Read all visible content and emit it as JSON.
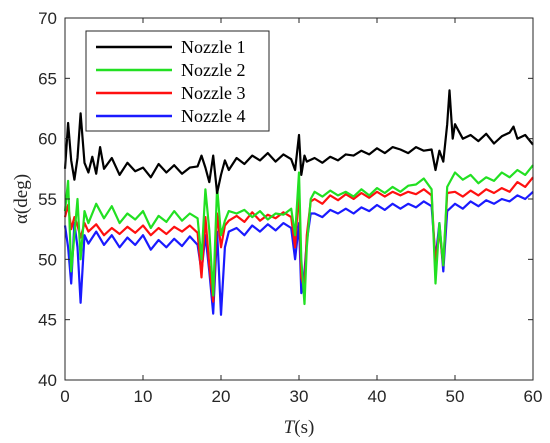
{
  "chart_data": {
    "type": "line",
    "xlabel": {
      "italic": "T",
      "rest": "(s)"
    },
    "ylabel": {
      "symbol": "α",
      "rest": "(deg)"
    },
    "xlim": [
      0,
      60
    ],
    "ylim": [
      40,
      70
    ],
    "xticks": [
      0,
      10,
      20,
      30,
      40,
      50,
      60
    ],
    "yticks": [
      40,
      45,
      50,
      55,
      60,
      65,
      70
    ],
    "grid": false,
    "legend_position": "top-left",
    "series": [
      {
        "name": "Nozzle 1",
        "color": "#000000",
        "points": [
          [
            0,
            57.5
          ],
          [
            0.4,
            61.3
          ],
          [
            0.8,
            58.2
          ],
          [
            1.2,
            56.6
          ],
          [
            1.6,
            58.4
          ],
          [
            2.0,
            62.1
          ],
          [
            2.5,
            58.0
          ],
          [
            3.0,
            57.2
          ],
          [
            3.5,
            58.5
          ],
          [
            4.0,
            57.1
          ],
          [
            4.5,
            59.3
          ],
          [
            5.0,
            57.5
          ],
          [
            6.0,
            58.4
          ],
          [
            7.0,
            57.0
          ],
          [
            8.0,
            58.0
          ],
          [
            9.0,
            57.3
          ],
          [
            10.0,
            57.6
          ],
          [
            11.0,
            56.8
          ],
          [
            12.0,
            57.9
          ],
          [
            13.0,
            57.2
          ],
          [
            14.0,
            57.8
          ],
          [
            15.0,
            57.1
          ],
          [
            16.0,
            57.6
          ],
          [
            17.0,
            57.7
          ],
          [
            17.5,
            58.6
          ],
          [
            18.0,
            57.6
          ],
          [
            18.5,
            56.4
          ],
          [
            19.0,
            58.6
          ],
          [
            19.5,
            55.5
          ],
          [
            20.0,
            57.0
          ],
          [
            20.5,
            58.2
          ],
          [
            21.0,
            57.4
          ],
          [
            22.0,
            58.4
          ],
          [
            23.0,
            57.9
          ],
          [
            24.0,
            58.6
          ],
          [
            25.0,
            58.2
          ],
          [
            26.0,
            58.8
          ],
          [
            27.0,
            58.1
          ],
          [
            28.0,
            58.7
          ],
          [
            29.0,
            58.3
          ],
          [
            29.5,
            57.4
          ],
          [
            30.0,
            60.3
          ],
          [
            30.3,
            57.0
          ],
          [
            30.7,
            58.6
          ],
          [
            31.0,
            58.1
          ],
          [
            32.0,
            58.4
          ],
          [
            33.0,
            58.0
          ],
          [
            34.0,
            58.5
          ],
          [
            35.0,
            58.2
          ],
          [
            36.0,
            58.7
          ],
          [
            37.0,
            58.6
          ],
          [
            38.0,
            59.0
          ],
          [
            39.0,
            58.7
          ],
          [
            40.0,
            59.2
          ],
          [
            41.0,
            58.8
          ],
          [
            42.0,
            59.3
          ],
          [
            43.0,
            59.1
          ],
          [
            44.0,
            58.8
          ],
          [
            45.0,
            59.3
          ],
          [
            46.0,
            59.0
          ],
          [
            47.0,
            59.1
          ],
          [
            47.5,
            57.4
          ],
          [
            48.0,
            59.0
          ],
          [
            48.5,
            58.1
          ],
          [
            49.0,
            61.2
          ],
          [
            49.3,
            64.0
          ],
          [
            49.7,
            60.0
          ],
          [
            50.0,
            61.2
          ],
          [
            51.0,
            60.0
          ],
          [
            52.0,
            60.3
          ],
          [
            53.0,
            59.8
          ],
          [
            54.0,
            60.4
          ],
          [
            55.0,
            59.6
          ],
          [
            56.0,
            60.2
          ],
          [
            57.0,
            60.5
          ],
          [
            57.5,
            61.0
          ],
          [
            58.0,
            60.0
          ],
          [
            59.0,
            60.3
          ],
          [
            60.0,
            59.5
          ]
        ]
      },
      {
        "name": "Nozzle 2",
        "color": "#22e022",
        "points": [
          [
            0,
            54.0
          ],
          [
            0.4,
            56.5
          ],
          [
            0.8,
            49.0
          ],
          [
            1.2,
            52.0
          ],
          [
            1.6,
            55.0
          ],
          [
            2.0,
            50.0
          ],
          [
            2.5,
            54.0
          ],
          [
            3.0,
            53.0
          ],
          [
            4.0,
            54.6
          ],
          [
            5.0,
            53.4
          ],
          [
            6.0,
            54.4
          ],
          [
            7.0,
            53.0
          ],
          [
            8.0,
            53.8
          ],
          [
            9.0,
            53.3
          ],
          [
            10.0,
            54.0
          ],
          [
            11.0,
            52.6
          ],
          [
            12.0,
            53.6
          ],
          [
            13.0,
            53.1
          ],
          [
            14.0,
            54.0
          ],
          [
            15.0,
            53.2
          ],
          [
            16.0,
            53.8
          ],
          [
            17.0,
            53.4
          ],
          [
            17.5,
            50.0
          ],
          [
            18.0,
            55.8
          ],
          [
            18.5,
            52.4
          ],
          [
            19.0,
            47.0
          ],
          [
            19.5,
            56.0
          ],
          [
            20.0,
            52.0
          ],
          [
            20.5,
            53.2
          ],
          [
            21.0,
            54.0
          ],
          [
            22.0,
            53.8
          ],
          [
            23.0,
            54.1
          ],
          [
            24.0,
            53.5
          ],
          [
            25.0,
            54.0
          ],
          [
            26.0,
            53.3
          ],
          [
            27.0,
            53.8
          ],
          [
            28.0,
            53.7
          ],
          [
            29.0,
            54.2
          ],
          [
            29.5,
            52.0
          ],
          [
            30.0,
            57.2
          ],
          [
            30.3,
            50.0
          ],
          [
            30.7,
            46.3
          ],
          [
            31.0,
            51.0
          ],
          [
            31.5,
            55.0
          ],
          [
            32.0,
            55.6
          ],
          [
            33.0,
            55.2
          ],
          [
            34.0,
            55.7
          ],
          [
            35.0,
            55.3
          ],
          [
            36.0,
            55.6
          ],
          [
            37.0,
            55.2
          ],
          [
            38.0,
            55.8
          ],
          [
            39.0,
            55.3
          ],
          [
            40.0,
            55.9
          ],
          [
            41.0,
            55.5
          ],
          [
            42.0,
            56.0
          ],
          [
            43.0,
            55.6
          ],
          [
            44.0,
            56.1
          ],
          [
            45.0,
            56.2
          ],
          [
            46.0,
            56.7
          ],
          [
            47.0,
            55.8
          ],
          [
            47.5,
            48.0
          ],
          [
            48.0,
            53.0
          ],
          [
            48.5,
            49.5
          ],
          [
            49.0,
            56.0
          ],
          [
            50.0,
            57.2
          ],
          [
            51.0,
            56.6
          ],
          [
            52.0,
            57.0
          ],
          [
            53.0,
            56.3
          ],
          [
            54.0,
            56.8
          ],
          [
            55.0,
            56.5
          ],
          [
            56.0,
            57.2
          ],
          [
            57.0,
            56.8
          ],
          [
            58.0,
            57.4
          ],
          [
            59.0,
            57.0
          ],
          [
            60.0,
            57.8
          ]
        ]
      },
      {
        "name": "Nozzle 3",
        "color": "#ff1010",
        "points": [
          [
            0,
            53.5
          ],
          [
            0.4,
            54.5
          ],
          [
            0.8,
            52.5
          ],
          [
            1.2,
            53.5
          ],
          [
            1.6,
            52.8
          ],
          [
            2.0,
            51.8
          ],
          [
            2.5,
            53.0
          ],
          [
            3.0,
            52.3
          ],
          [
            4.0,
            52.9
          ],
          [
            5.0,
            52.0
          ],
          [
            6.0,
            52.6
          ],
          [
            7.0,
            52.1
          ],
          [
            8.0,
            52.7
          ],
          [
            9.0,
            52.2
          ],
          [
            10.0,
            52.8
          ],
          [
            11.0,
            52.0
          ],
          [
            12.0,
            52.6
          ],
          [
            13.0,
            52.1
          ],
          [
            14.0,
            52.7
          ],
          [
            15.0,
            52.3
          ],
          [
            16.0,
            52.8
          ],
          [
            17.0,
            52.2
          ],
          [
            17.5,
            48.5
          ],
          [
            18.0,
            53.5
          ],
          [
            18.5,
            49.5
          ],
          [
            19.0,
            46.5
          ],
          [
            19.5,
            53.8
          ],
          [
            20.0,
            51.0
          ],
          [
            20.5,
            52.8
          ],
          [
            21.0,
            53.2
          ],
          [
            22.0,
            53.6
          ],
          [
            23.0,
            53.1
          ],
          [
            24.0,
            53.9
          ],
          [
            25.0,
            53.2
          ],
          [
            26.0,
            53.7
          ],
          [
            27.0,
            53.4
          ],
          [
            28.0,
            53.9
          ],
          [
            29.0,
            53.5
          ],
          [
            29.5,
            51.0
          ],
          [
            30.0,
            56.0
          ],
          [
            30.3,
            48.5
          ],
          [
            30.7,
            47.5
          ],
          [
            31.0,
            52.0
          ],
          [
            31.5,
            54.8
          ],
          [
            32.0,
            55.0
          ],
          [
            33.0,
            54.6
          ],
          [
            34.0,
            55.3
          ],
          [
            35.0,
            54.9
          ],
          [
            36.0,
            55.4
          ],
          [
            37.0,
            55.0
          ],
          [
            38.0,
            55.5
          ],
          [
            39.0,
            55.1
          ],
          [
            40.0,
            55.6
          ],
          [
            41.0,
            55.2
          ],
          [
            42.0,
            55.6
          ],
          [
            43.0,
            55.3
          ],
          [
            44.0,
            55.6
          ],
          [
            45.0,
            55.4
          ],
          [
            46.0,
            55.8
          ],
          [
            47.0,
            55.3
          ],
          [
            47.5,
            49.5
          ],
          [
            48.0,
            52.5
          ],
          [
            48.5,
            49.5
          ],
          [
            49.0,
            55.5
          ],
          [
            50.0,
            55.6
          ],
          [
            51.0,
            55.2
          ],
          [
            52.0,
            55.7
          ],
          [
            53.0,
            55.3
          ],
          [
            54.0,
            55.8
          ],
          [
            55.0,
            55.5
          ],
          [
            56.0,
            55.9
          ],
          [
            57.0,
            55.6
          ],
          [
            58.0,
            56.4
          ],
          [
            59.0,
            56.0
          ],
          [
            60.0,
            56.8
          ]
        ]
      },
      {
        "name": "Nozzle 4",
        "color": "#1a1aff",
        "points": [
          [
            0,
            52.8
          ],
          [
            0.4,
            51.0
          ],
          [
            0.8,
            48.0
          ],
          [
            1.2,
            53.0
          ],
          [
            1.6,
            51.0
          ],
          [
            2.0,
            46.4
          ],
          [
            2.5,
            52.0
          ],
          [
            3.0,
            51.3
          ],
          [
            4.0,
            52.3
          ],
          [
            5.0,
            51.2
          ],
          [
            6.0,
            52.0
          ],
          [
            7.0,
            51.0
          ],
          [
            8.0,
            51.8
          ],
          [
            9.0,
            51.2
          ],
          [
            10.0,
            52.0
          ],
          [
            11.0,
            50.8
          ],
          [
            12.0,
            51.6
          ],
          [
            13.0,
            51.0
          ],
          [
            14.0,
            51.7
          ],
          [
            15.0,
            51.1
          ],
          [
            16.0,
            51.9
          ],
          [
            17.0,
            51.2
          ],
          [
            17.5,
            49.0
          ],
          [
            18.0,
            52.0
          ],
          [
            18.5,
            49.0
          ],
          [
            19.0,
            45.5
          ],
          [
            19.5,
            52.3
          ],
          [
            20.0,
            45.4
          ],
          [
            20.5,
            51.0
          ],
          [
            21.0,
            52.3
          ],
          [
            22.0,
            52.6
          ],
          [
            23.0,
            52.0
          ],
          [
            24.0,
            52.8
          ],
          [
            25.0,
            52.3
          ],
          [
            26.0,
            52.9
          ],
          [
            27.0,
            52.4
          ],
          [
            28.0,
            53.0
          ],
          [
            29.0,
            52.6
          ],
          [
            29.5,
            50.0
          ],
          [
            30.0,
            53.0
          ],
          [
            30.3,
            47.2
          ],
          [
            30.7,
            49.0
          ],
          [
            31.0,
            51.5
          ],
          [
            31.5,
            53.8
          ],
          [
            32.0,
            53.8
          ],
          [
            33.0,
            53.5
          ],
          [
            34.0,
            54.1
          ],
          [
            35.0,
            53.8
          ],
          [
            36.0,
            54.2
          ],
          [
            37.0,
            53.8
          ],
          [
            38.0,
            54.3
          ],
          [
            39.0,
            54.0
          ],
          [
            40.0,
            54.5
          ],
          [
            41.0,
            54.1
          ],
          [
            42.0,
            54.6
          ],
          [
            43.0,
            54.2
          ],
          [
            44.0,
            54.6
          ],
          [
            45.0,
            54.3
          ],
          [
            46.0,
            54.8
          ],
          [
            47.0,
            54.4
          ],
          [
            47.5,
            50.0
          ],
          [
            48.0,
            53.0
          ],
          [
            48.5,
            49.0
          ],
          [
            49.0,
            54.0
          ],
          [
            50.0,
            54.6
          ],
          [
            51.0,
            54.2
          ],
          [
            52.0,
            54.8
          ],
          [
            53.0,
            54.4
          ],
          [
            54.0,
            54.9
          ],
          [
            55.0,
            54.6
          ],
          [
            56.0,
            55.0
          ],
          [
            57.0,
            54.8
          ],
          [
            58.0,
            55.3
          ],
          [
            59.0,
            55.0
          ],
          [
            60.0,
            55.6
          ]
        ]
      }
    ]
  }
}
